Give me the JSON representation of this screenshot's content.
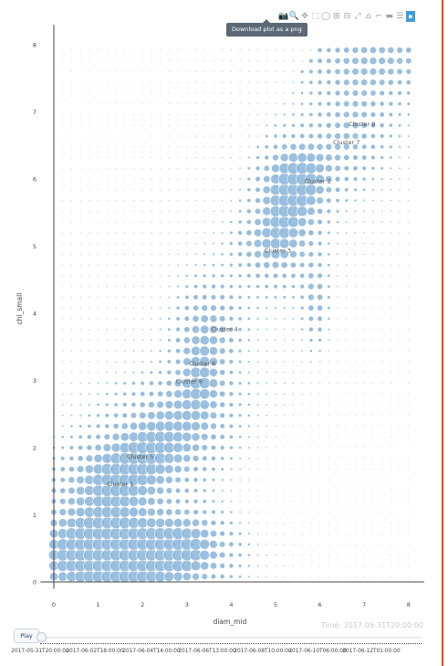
{
  "chart_data": {
    "type": "scatter",
    "title": "",
    "xlabel": "diam_mid",
    "ylabel": "chl_small",
    "xlim": [
      -0.3,
      8.35
    ],
    "ylim": [
      -0.1,
      8.3
    ],
    "xticks": [
      0,
      1,
      2,
      3,
      4,
      5,
      6,
      7,
      8
    ],
    "yticks": [
      0,
      1,
      2,
      3,
      4,
      5,
      6,
      7,
      8
    ],
    "grid": false,
    "marker_color": "#8ab4d8",
    "grid_x_start": 0.0,
    "grid_x_step": 0.2,
    "grid_y_start": 0.08,
    "grid_y_step": 0.16,
    "clusters": [
      {
        "label": "Cluster 9",
        "x": 6.95,
        "y": 6.82
      },
      {
        "label": "Cluster 7",
        "x": 6.6,
        "y": 6.55
      },
      {
        "label": "Cluster 2",
        "x": 5.95,
        "y": 5.97
      },
      {
        "label": "Cluster 3",
        "x": 5.05,
        "y": 4.94
      },
      {
        "label": "Cluster 4",
        "x": 3.85,
        "y": 3.77
      },
      {
        "label": "Cluster 6",
        "x": 3.35,
        "y": 3.26
      },
      {
        "label": "Cluster 8",
        "x": 3.05,
        "y": 2.99
      },
      {
        "label": "Cluster 5",
        "x": 1.95,
        "y": 1.87
      },
      {
        "label": "Cluster 1",
        "x": 1.5,
        "y": 1.46
      }
    ]
  },
  "modebar": {
    "buttons": [
      "camera-icon",
      "zoom-icon",
      "pan-icon",
      "box-select-icon",
      "lasso-icon",
      "zoom-in-icon",
      "zoom-out-icon",
      "autoscale-icon",
      "home-icon",
      "spike-icon",
      "hover-closest-icon",
      "hover-compare-icon",
      "logo-icon"
    ],
    "glyphs": [
      "📷",
      "🔍",
      "✥",
      "⬚",
      "◯",
      "⊞",
      "⊟",
      "⤢",
      "⌂",
      "⌐",
      "▬",
      "☰",
      "▪"
    ],
    "tooltip": "Download plot as a png"
  },
  "animation": {
    "play_label": "Play",
    "time_label": "Time: 2017-05-31T20:00:00",
    "frame_labels": [
      "2017-05-31T20:00:00",
      "2017-06-02T18:00:00",
      "2017-06-04T14:00:00",
      "2017-06-06T13:00:00",
      "2017-06-08T10:00:00",
      "2017-06-10T06:00:00",
      "2017-06-12T01:00:00"
    ]
  }
}
